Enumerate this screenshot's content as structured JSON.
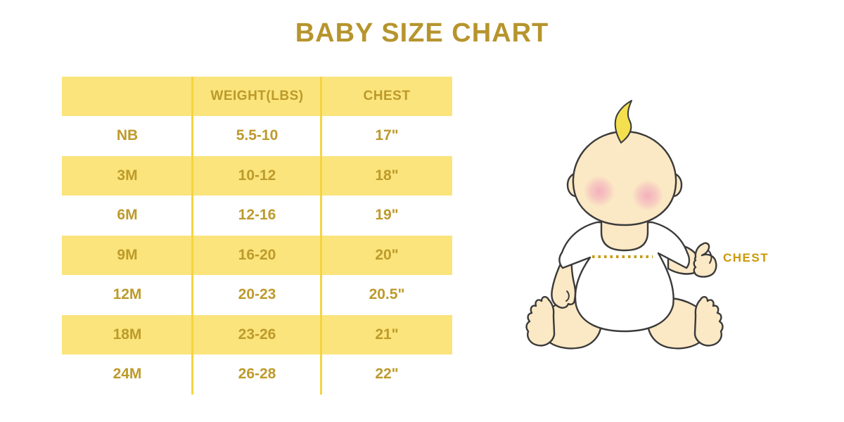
{
  "title": "BABY SIZE CHART",
  "colors": {
    "title_gold": "#B6952E",
    "table_text_gold": "#BD9A2B",
    "row_yellow": "#FAE47B",
    "divider_yellow": "#F6D442",
    "chest_label_gold": "#CC9803",
    "dotted_line_gold": "#C79A12",
    "baby_skin": "#FBE8C4",
    "baby_hair_yellow": "#F4DF4E",
    "blush_pink": "#F2A9BC",
    "outline_dark": "#3A3A3A"
  },
  "chart_data": {
    "type": "table",
    "title": "BABY SIZE CHART",
    "columns": [
      "",
      "WEIGHT(LBS)",
      "CHEST"
    ],
    "rows": [
      [
        "NB",
        "5.5-10",
        "17\""
      ],
      [
        "3M",
        "10-12",
        "18\""
      ],
      [
        "6M",
        "12-16",
        "19\""
      ],
      [
        "9M",
        "16-20",
        "20\""
      ],
      [
        "12M",
        "20-23",
        "20.5\""
      ],
      [
        "18M",
        "23-26",
        "21\""
      ],
      [
        "24M",
        "26-28",
        "22\""
      ]
    ],
    "layout": {
      "header_background": "#FAE47B",
      "alternating_rows": true,
      "first_data_row": "white"
    }
  },
  "illustration": {
    "chest_label": "CHEST"
  }
}
